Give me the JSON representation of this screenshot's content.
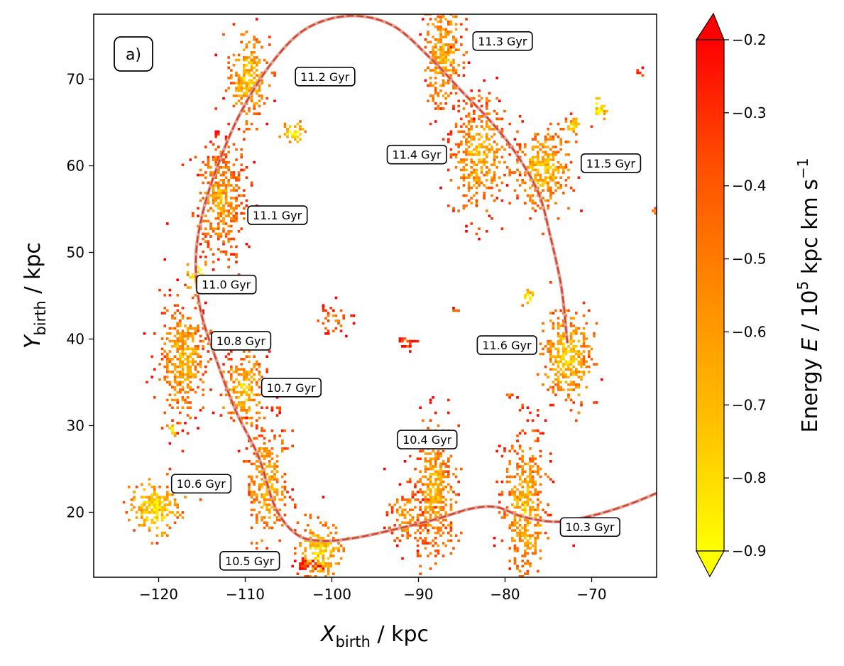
{
  "chart_data": {
    "type": "scatter",
    "panel_label": "a)",
    "xlabel": {
      "symbol": "X",
      "subscript": "birth",
      "unit": " / kpc"
    },
    "ylabel": {
      "symbol": "Y",
      "subscript": "birth",
      "unit": " / kpc"
    },
    "xlim": [
      -127.5,
      -62.5
    ],
    "ylim": [
      12.5,
      77.5
    ],
    "xticks": [
      -120,
      -110,
      -100,
      -90,
      -80,
      -70
    ],
    "xtick_labels": [
      "−120",
      "−110",
      "−100",
      "−90",
      "−80",
      "−70"
    ],
    "yticks": [
      20,
      30,
      40,
      50,
      60,
      70
    ],
    "ytick_labels": [
      "20",
      "30",
      "40",
      "50",
      "60",
      "70"
    ],
    "colorbar": {
      "label_prefix": "Energy ",
      "label_var": "E",
      "label_mid": " / 10",
      "label_exp": "5",
      "label_units": " kpc km s",
      "label_units_exp": "−1",
      "range": [
        -0.9,
        -0.2
      ],
      "ticks": [
        -0.9,
        -0.8,
        -0.7,
        -0.6,
        -0.5,
        -0.4,
        -0.3,
        -0.2
      ],
      "tick_labels": [
        "−0.9",
        "−0.8",
        "−0.7",
        "−0.6",
        "−0.5",
        "−0.4",
        "−0.3",
        "−0.2"
      ],
      "extend": "both",
      "colors": [
        "#ffff00",
        "#ffc000",
        "#ff8c00",
        "#ff5000",
        "#ff0000"
      ]
    },
    "orbit_colors": {
      "outer": "#dd9a8e",
      "inner": "#d0412a"
    },
    "orbit_path": [
      [
        -62.5,
        22.2
      ],
      [
        -66,
        20.8
      ],
      [
        -70,
        19.6
      ],
      [
        -74,
        18.9
      ],
      [
        -78,
        19.5
      ],
      [
        -81,
        20.6
      ],
      [
        -84,
        20.4
      ],
      [
        -88,
        19.2
      ],
      [
        -92,
        18.2
      ],
      [
        -97,
        17.1
      ],
      [
        -101,
        16.7
      ],
      [
        -104,
        17.4
      ],
      [
        -106.5,
        20.5
      ],
      [
        -108.5,
        26.5
      ],
      [
        -111,
        31.5
      ],
      [
        -113.3,
        37.5
      ],
      [
        -115.2,
        43.5
      ],
      [
        -115.7,
        49.5
      ],
      [
        -114.8,
        55
      ],
      [
        -113,
        60.5
      ],
      [
        -110.5,
        66.2
      ],
      [
        -107,
        71.8
      ],
      [
        -103,
        75.8
      ],
      [
        -98,
        77.3
      ],
      [
        -93,
        76.2
      ],
      [
        -88.5,
        72.3
      ],
      [
        -85,
        68.6
      ],
      [
        -82,
        65.5
      ],
      [
        -79,
        61.8
      ],
      [
        -76.2,
        57
      ],
      [
        -74.8,
        52
      ],
      [
        -73.5,
        46
      ],
      [
        -72.8,
        39.5
      ]
    ],
    "annotations": [
      {
        "label": "11.3 Gyr",
        "x": -80.3,
        "y": 74.4
      },
      {
        "label": "11.2 Gyr",
        "x": -100.8,
        "y": 70.3
      },
      {
        "label": "11.4 Gyr",
        "x": -90.2,
        "y": 61.3
      },
      {
        "label": "11.5 Gyr",
        "x": -67.8,
        "y": 60.3
      },
      {
        "label": "11.1 Gyr",
        "x": -106.3,
        "y": 54.3
      },
      {
        "label": "11.0 Gyr",
        "x": -112.2,
        "y": 46.3
      },
      {
        "label": "10.8 Gyr",
        "x": -110.5,
        "y": 39.8
      },
      {
        "label": "11.6 Gyr",
        "x": -79.8,
        "y": 39.3
      },
      {
        "label": "10.7 Gyr",
        "x": -104.7,
        "y": 34.4
      },
      {
        "label": "10.4 Gyr",
        "x": -89,
        "y": 28.4
      },
      {
        "label": "10.6 Gyr",
        "x": -115.1,
        "y": 23.3
      },
      {
        "label": "10.3 Gyr",
        "x": -70.2,
        "y": 18.3
      },
      {
        "label": "10.5 Gyr",
        "x": -109.5,
        "y": 14.4
      }
    ],
    "clumps": [
      {
        "x": -109.8,
        "y": 70.3,
        "sx": 1.1,
        "sy": 2.4,
        "n": 240,
        "e": -0.55
      },
      {
        "x": -113,
        "y": 56.5,
        "sx": 1.5,
        "sy": 3.6,
        "n": 420,
        "e": -0.45
      },
      {
        "x": -117.2,
        "y": 37.8,
        "sx": 1.4,
        "sy": 3.3,
        "n": 380,
        "e": -0.5
      },
      {
        "x": -115.6,
        "y": 47.3,
        "sx": 0.5,
        "sy": 0.9,
        "n": 40,
        "e": -0.75
      },
      {
        "x": -110.3,
        "y": 34.3,
        "sx": 1.2,
        "sy": 2.2,
        "n": 220,
        "e": -0.55
      },
      {
        "x": -107.6,
        "y": 23.5,
        "sx": 1.2,
        "sy": 3.5,
        "n": 280,
        "e": -0.5
      },
      {
        "x": -120.6,
        "y": 20.6,
        "sx": 1.4,
        "sy": 1.4,
        "n": 200,
        "e": -0.65
      },
      {
        "x": -101.5,
        "y": 15.5,
        "sx": 1.3,
        "sy": 1.8,
        "n": 180,
        "e": -0.6
      },
      {
        "x": -88.2,
        "y": 22.5,
        "sx": 1.2,
        "sy": 4,
        "n": 430,
        "e": -0.5
      },
      {
        "x": -91.6,
        "y": 19.6,
        "sx": 1.1,
        "sy": 1.7,
        "n": 110,
        "e": -0.45
      },
      {
        "x": -77.8,
        "y": 20.5,
        "sx": 1.3,
        "sy": 4.6,
        "n": 430,
        "e": -0.5
      },
      {
        "x": -73,
        "y": 38,
        "sx": 1.4,
        "sy": 2.9,
        "n": 320,
        "e": -0.55
      },
      {
        "x": -75.8,
        "y": 59.8,
        "sx": 1.6,
        "sy": 2.2,
        "n": 320,
        "e": -0.55
      },
      {
        "x": -83.3,
        "y": 61.5,
        "sx": 1.6,
        "sy": 3.5,
        "n": 380,
        "e": -0.5
      },
      {
        "x": -87.3,
        "y": 73,
        "sx": 1.1,
        "sy": 3.2,
        "n": 300,
        "e": -0.5
      },
      {
        "x": -104.5,
        "y": 63.9,
        "sx": 0.6,
        "sy": 0.5,
        "n": 40,
        "e": -0.75
      },
      {
        "x": -100,
        "y": 42.5,
        "sx": 1.1,
        "sy": 1,
        "n": 40,
        "e": -0.3
      },
      {
        "x": -91.3,
        "y": 39.7,
        "sx": 0.5,
        "sy": 0.4,
        "n": 25,
        "e": -0.25
      },
      {
        "x": -72.2,
        "y": 64.6,
        "sx": 0.6,
        "sy": 0.6,
        "n": 25,
        "e": -0.6
      },
      {
        "x": -69.2,
        "y": 66.7,
        "sx": 0.4,
        "sy": 0.7,
        "n": 25,
        "e": -0.7
      },
      {
        "x": -77.5,
        "y": 45,
        "sx": 0.3,
        "sy": 0.4,
        "n": 18,
        "e": -0.78
      },
      {
        "x": -79.6,
        "y": 33.7,
        "sx": 0.2,
        "sy": 0.2,
        "n": 6,
        "e": -0.3
      },
      {
        "x": -103.1,
        "y": 14.1,
        "sx": 0.7,
        "sy": 0.3,
        "n": 40,
        "e": -0.22
      },
      {
        "x": -85.8,
        "y": 43.5,
        "sx": 0.2,
        "sy": 0.2,
        "n": 5,
        "e": -0.25
      },
      {
        "x": -118.5,
        "y": 29.5,
        "sx": 0.3,
        "sy": 0.4,
        "n": 10,
        "e": -0.7
      },
      {
        "x": -64.5,
        "y": 70.8,
        "sx": 0.2,
        "sy": 0.2,
        "n": 6,
        "e": -0.3
      },
      {
        "x": -62.8,
        "y": 54.9,
        "sx": 0.2,
        "sy": 0.2,
        "n": 5,
        "e": -0.35
      },
      {
        "x": -106.6,
        "y": 32.4,
        "sx": 0.4,
        "sy": 0.4,
        "n": 8,
        "e": -0.35
      }
    ]
  }
}
